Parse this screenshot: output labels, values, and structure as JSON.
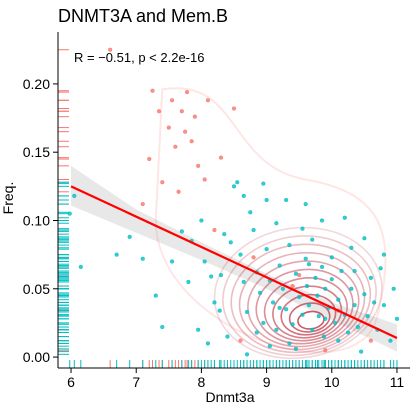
{
  "chart_data": {
    "type": "scatter",
    "title": "DNMT3A and Mem.B",
    "xlabel": "Dnmt3a",
    "ylabel": "Freq.",
    "xlim": [
      5.8,
      11.2
    ],
    "ylim": [
      -0.008,
      0.238
    ],
    "x_ticks": [
      6,
      7,
      8,
      9,
      10,
      11
    ],
    "x_tick_labels": [
      "6",
      "7",
      "8",
      "9",
      "10",
      "11"
    ],
    "y_ticks": [
      0.0,
      0.05,
      0.1,
      0.15,
      0.2
    ],
    "y_tick_labels": [
      "0.00",
      "0.05",
      "0.10",
      "0.15",
      "0.20"
    ],
    "annotation": {
      "text": "R = −0.51, p < 2.2e-16",
      "x": 6.0,
      "y": 0.215
    },
    "grid": false,
    "legend": "none",
    "colors": {
      "group_high": "#F8766D",
      "group_low": "#00BFC4",
      "regression": "#FF0000",
      "confidence_band": "#BEBEBE",
      "density": "#C03A4A"
    },
    "regression_line": {
      "x": [
        6.0,
        11.0
      ],
      "y": [
        0.125,
        0.014
      ]
    },
    "confidence_band": {
      "x": [
        6.0,
        7.0,
        8.0,
        9.0,
        10.0,
        11.0
      ],
      "upper": [
        0.14,
        0.108,
        0.084,
        0.061,
        0.04,
        0.024
      ],
      "lower": [
        0.111,
        0.091,
        0.071,
        0.05,
        0.027,
        0.004
      ]
    },
    "density_center": {
      "x": 9.7,
      "y": 0.025
    },
    "series": [
      {
        "group": "high",
        "points": [
          [
            6.6,
            0.225
          ],
          [
            7.25,
            0.195
          ],
          [
            7.55,
            0.188
          ],
          [
            7.7,
            0.18
          ],
          [
            7.78,
            0.194
          ],
          [
            7.35,
            0.18
          ],
          [
            7.5,
            0.168
          ],
          [
            7.9,
            0.176
          ],
          [
            8.1,
            0.188
          ],
          [
            7.6,
            0.154
          ],
          [
            7.2,
            0.145
          ],
          [
            7.95,
            0.14
          ],
          [
            8.3,
            0.146
          ],
          [
            7.75,
            0.165
          ],
          [
            7.4,
            0.128
          ],
          [
            8.5,
            0.182
          ],
          [
            7.65,
            0.121
          ],
          [
            8.05,
            0.13
          ],
          [
            7.85,
            0.158
          ],
          [
            7.1,
            0.112
          ],
          [
            8.8,
            0.073
          ],
          [
            8.6,
            0.012
          ],
          [
            9.4,
            0.052
          ],
          [
            10.1,
            0.034
          ],
          [
            9.5,
            0.06
          ],
          [
            8.2,
            0.093
          ],
          [
            9.9,
            0.005
          ],
          [
            10.6,
            0.012
          ]
        ]
      },
      {
        "group": "low",
        "points": [
          [
            5.98,
            0.105
          ],
          [
            6.05,
            0.118
          ],
          [
            6.15,
            0.066
          ],
          [
            6.9,
            0.088
          ],
          [
            6.7,
            0.075
          ],
          [
            7.1,
            0.072
          ],
          [
            7.3,
            0.045
          ],
          [
            7.55,
            0.07
          ],
          [
            7.7,
            0.092
          ],
          [
            7.85,
            0.085
          ],
          [
            8.0,
            0.1
          ],
          [
            8.05,
            0.07
          ],
          [
            8.15,
            0.059
          ],
          [
            8.2,
            0.04
          ],
          [
            8.28,
            0.034
          ],
          [
            8.35,
            0.09
          ],
          [
            8.45,
            0.084
          ],
          [
            8.55,
            0.128
          ],
          [
            8.6,
            0.075
          ],
          [
            8.65,
            0.055
          ],
          [
            8.7,
            0.033
          ],
          [
            8.75,
            0.106
          ],
          [
            8.8,
            0.093
          ],
          [
            8.85,
            0.062
          ],
          [
            8.9,
            0.047
          ],
          [
            8.95,
            0.025
          ],
          [
            9.0,
            0.079
          ],
          [
            9.05,
            0.056
          ],
          [
            9.1,
            0.04
          ],
          [
            9.15,
            0.098
          ],
          [
            9.2,
            0.067
          ],
          [
            9.25,
            0.05
          ],
          [
            9.3,
            0.035
          ],
          [
            9.35,
            0.082
          ],
          [
            9.4,
            0.024
          ],
          [
            9.45,
            0.061
          ],
          [
            9.5,
            0.044
          ],
          [
            9.55,
            0.031
          ],
          [
            9.6,
            0.072
          ],
          [
            9.62,
            0.052
          ],
          [
            9.65,
            0.038
          ],
          [
            9.7,
            0.02
          ],
          [
            9.75,
            0.058
          ],
          [
            9.78,
            0.045
          ],
          [
            9.8,
            0.03
          ],
          [
            9.85,
            0.066
          ],
          [
            9.88,
            0.015
          ],
          [
            9.9,
            0.05
          ],
          [
            9.95,
            0.036
          ],
          [
            10.0,
            0.057
          ],
          [
            10.05,
            0.025
          ],
          [
            10.1,
            0.042
          ],
          [
            10.15,
            0.063
          ],
          [
            10.2,
            0.031
          ],
          [
            10.25,
            0.018
          ],
          [
            10.3,
            0.05
          ],
          [
            10.35,
            0.038
          ],
          [
            10.4,
            0.022
          ],
          [
            10.5,
            0.046
          ],
          [
            10.55,
            0.03
          ],
          [
            10.6,
            0.058
          ],
          [
            10.7,
            0.02
          ],
          [
            10.8,
            0.038
          ],
          [
            10.9,
            0.012
          ],
          [
            10.95,
            0.05
          ],
          [
            11.0,
            0.028
          ],
          [
            8.5,
            0.125
          ],
          [
            8.95,
            0.127
          ],
          [
            9.3,
            0.115
          ],
          [
            9.6,
            0.112
          ],
          [
            9.85,
            0.1
          ],
          [
            10.2,
            0.102
          ],
          [
            10.5,
            0.087
          ],
          [
            7.95,
            0.02
          ],
          [
            8.1,
            0.01
          ],
          [
            7.4,
            0.022
          ],
          [
            8.4,
            0.015
          ],
          [
            9.05,
            0.008
          ],
          [
            9.45,
            0.006
          ],
          [
            10.45,
            0.004
          ],
          [
            10.75,
            0.065
          ],
          [
            9.15,
            0.02
          ],
          [
            8.7,
            0.002
          ],
          [
            9.7,
            0.086
          ],
          [
            8.3,
            0.06
          ],
          [
            7.8,
            0.055
          ],
          [
            9.0,
            0.115
          ],
          [
            8.65,
            0.118
          ],
          [
            10.0,
            0.073
          ],
          [
            10.3,
            0.08
          ],
          [
            9.55,
            0.094
          ],
          [
            9.2,
            0.036
          ],
          [
            8.85,
            0.018
          ],
          [
            9.35,
            0.01
          ],
          [
            9.9,
            0.028
          ],
          [
            10.1,
            0.012
          ],
          [
            10.65,
            0.04
          ],
          [
            10.8,
            0.075
          ],
          [
            10.35,
            0.063
          ],
          [
            9.65,
            0.068
          ]
        ]
      }
    ]
  }
}
